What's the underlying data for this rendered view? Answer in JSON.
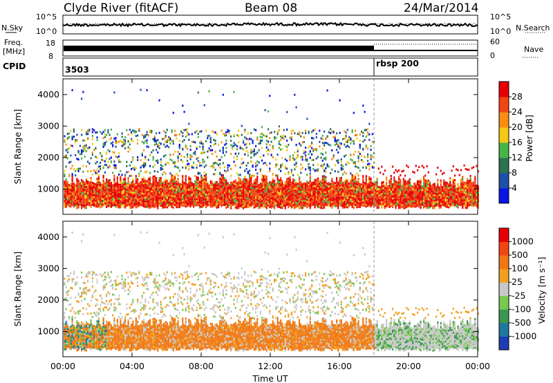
{
  "header": {
    "title": "Clyde River (fitACF)",
    "beam": "Beam 08",
    "date": "24/Mar/2014"
  },
  "sky_panel": {
    "left_label": "N.Sky",
    "left_ticks": [
      "10^5",
      "10^0"
    ],
    "right_ticks": [
      "10^5",
      "10^0"
    ],
    "right_label": "N.Search"
  },
  "freq_panel": {
    "label_line1": "Freq.",
    "label_line2": "[MHz]",
    "left_ticks": [
      "18",
      "8"
    ],
    "right_ticks": [
      "60",
      "0"
    ],
    "right_label": "Nave"
  },
  "cpid_panel": {
    "label": "CPID",
    "segments": [
      {
        "text": "3503",
        "start_hour": 0
      },
      {
        "text": "rbsp 200",
        "start_hour": 18
      }
    ]
  },
  "chart_data": [
    {
      "type": "heatmap",
      "title": "",
      "ylabel": "Slant Range [km]",
      "xlabel": "",
      "ylim": [
        200,
        4500
      ],
      "yticks": [
        "1000",
        "2000",
        "3000",
        "4000"
      ],
      "xlim": [
        0,
        24
      ],
      "colorbar": {
        "label": "Power [dB]",
        "ticks": [
          "4",
          "8",
          "12",
          "16",
          "20",
          "24",
          "28"
        ],
        "colors": [
          "#0a14e6",
          "#1e50aa",
          "#2d7350",
          "#46b446",
          "#f5c814",
          "#fa8c14",
          "#f04614",
          "#e60000"
        ]
      }
    },
    {
      "type": "heatmap",
      "title": "",
      "ylabel": "Slant Range [km]",
      "xlabel": "Time UT",
      "ylim": [
        200,
        4500
      ],
      "yticks": [
        "1000",
        "2000",
        "3000",
        "4000"
      ],
      "xlim": [
        0,
        24
      ],
      "xticks": [
        "00:00",
        "04:00",
        "08:00",
        "12:00",
        "16:00",
        "20:00",
        "00:00"
      ],
      "colorbar": {
        "label": "Velocity [m s⁻¹]",
        "ticks": [
          "1000",
          "500",
          "100",
          "25",
          "-25",
          "-100",
          "-500",
          "-1000"
        ],
        "colors": [
          "#1e3cb4",
          "#1e78a0",
          "#3c9650",
          "#78c850",
          "#c8c8c8",
          "#f0a020",
          "#f07814",
          "#f04614",
          "#e60000"
        ]
      }
    }
  ]
}
